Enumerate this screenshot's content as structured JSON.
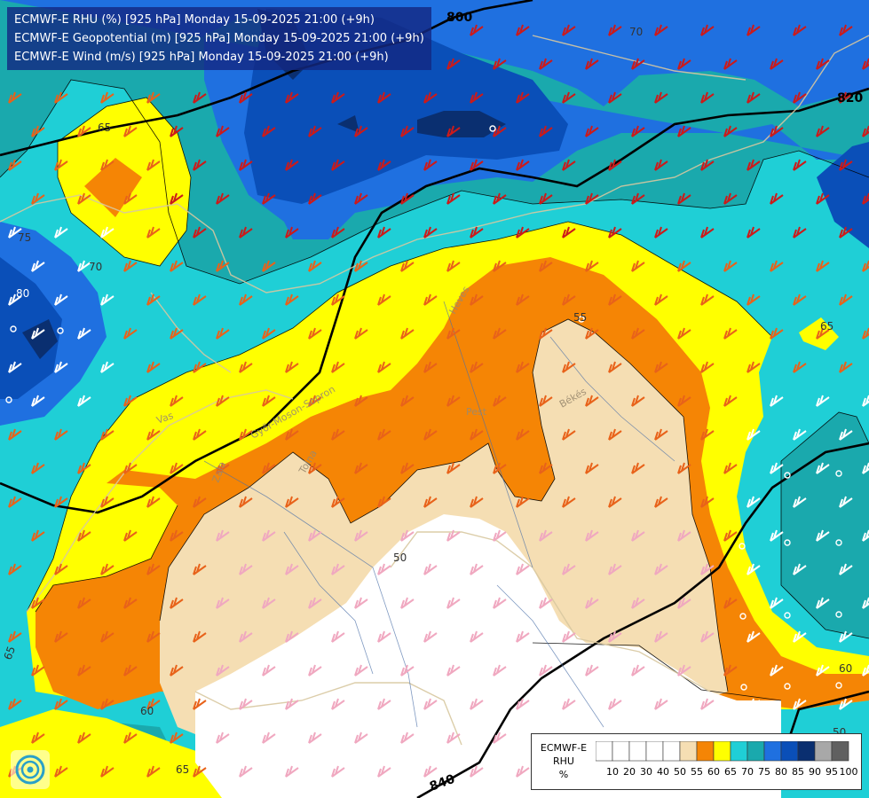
{
  "header": {
    "line1": "ECMWF-E RHU (%) [925 hPa] Monday 15-09-2025 21:00 (+9h)",
    "line2": "ECMWF-E Geopotential (m) [925 hPa] Monday 15-09-2025 21:00 (+9h)",
    "line3": "ECMWF-E Wind (m/s) [925 hPa] Monday 15-09-2025 21:00 (+9h)"
  },
  "legend": {
    "title1": "ECMWF-E",
    "title2": "RHU",
    "title3": "%",
    "bins": [
      {
        "label": "10",
        "color": "#ffffff"
      },
      {
        "label": "20",
        "color": "#ffffff"
      },
      {
        "label": "30",
        "color": "#ffffff"
      },
      {
        "label": "40",
        "color": "#ffffff"
      },
      {
        "label": "50",
        "color": "#ffffff"
      },
      {
        "label": "55",
        "color": "#f5deb3"
      },
      {
        "label": "60",
        "color": "#f58505"
      },
      {
        "label": "65",
        "color": "#ffff00"
      },
      {
        "label": "70",
        "color": "#1fcfd6"
      },
      {
        "label": "75",
        "color": "#1aa9ad"
      },
      {
        "label": "80",
        "color": "#1f70e0"
      },
      {
        "label": "85",
        "color": "#0a4fb8"
      },
      {
        "label": "90",
        "color": "#0a2f70"
      },
      {
        "label": "95",
        "color": "#a8a8a8"
      },
      {
        "label": "100",
        "color": "#606060"
      }
    ]
  },
  "contour_labels": {
    "geo_800": "800",
    "geo_820": "820",
    "geo_840": "840",
    "rh_70_top": "70",
    "rh_65_a": "65",
    "rh_75": "75",
    "rh_70_left": "70",
    "rh_80": "80",
    "rh_55": "55",
    "rh_50_a": "50",
    "rh_65_right": "65",
    "rh_60_right": "60",
    "rh_50_right": "50",
    "rh_65_left": "65",
    "rh_60_bottom": "60",
    "rh_65_bottom": "65"
  },
  "places": {
    "pest": "Pest",
    "bekes": "Békés",
    "vas": "Vas",
    "gyor": "Győr-Moson-Sopron",
    "zala": "Zala",
    "tolna": "Tolna",
    "heves": "Heves"
  },
  "colors": {
    "rh55": "#f5deb3",
    "rh60": "#f58505",
    "rh65": "#ffff00",
    "rh70": "#1fcfd6",
    "rh75": "#1aa9ad",
    "rh80": "#1f70e0",
    "rh85": "#0a4fb8",
    "rh90": "#0a2f70",
    "white": "#ffffff",
    "wind_red": "#cc1a1a",
    "wind_orange": "#e8621a",
    "wind_pink": "#f0a8c0",
    "wind_white": "#ffffff",
    "border": "#d8c8a0"
  },
  "logo": "ecmwf-logo"
}
